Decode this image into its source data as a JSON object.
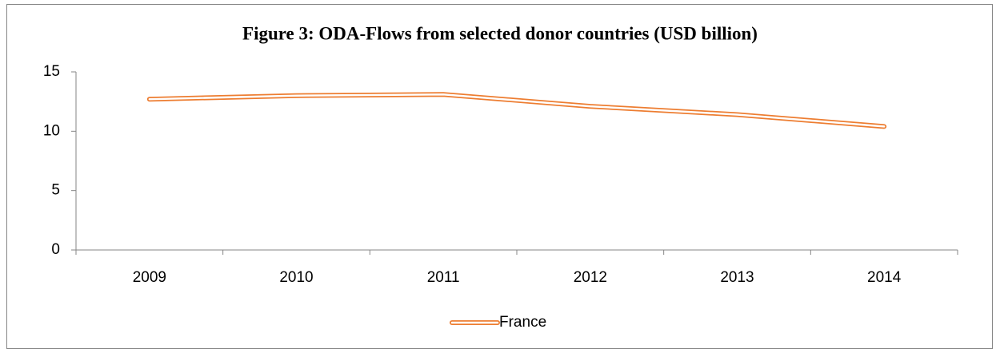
{
  "chart_data": {
    "type": "line",
    "title": "Figure 3: ODA-Flows from selected donor countries (USD billion)",
    "categories": [
      "2009",
      "2010",
      "2011",
      "2012",
      "2013",
      "2014"
    ],
    "series": [
      {
        "name": "France",
        "color": "#ed7d31",
        "values": [
          12.7,
          13.0,
          13.1,
          12.1,
          11.4,
          10.4
        ]
      }
    ],
    "ylim": [
      0,
      15
    ],
    "yticks": [
      0,
      5,
      10,
      15
    ],
    "grid": false,
    "legend": "bottom"
  }
}
